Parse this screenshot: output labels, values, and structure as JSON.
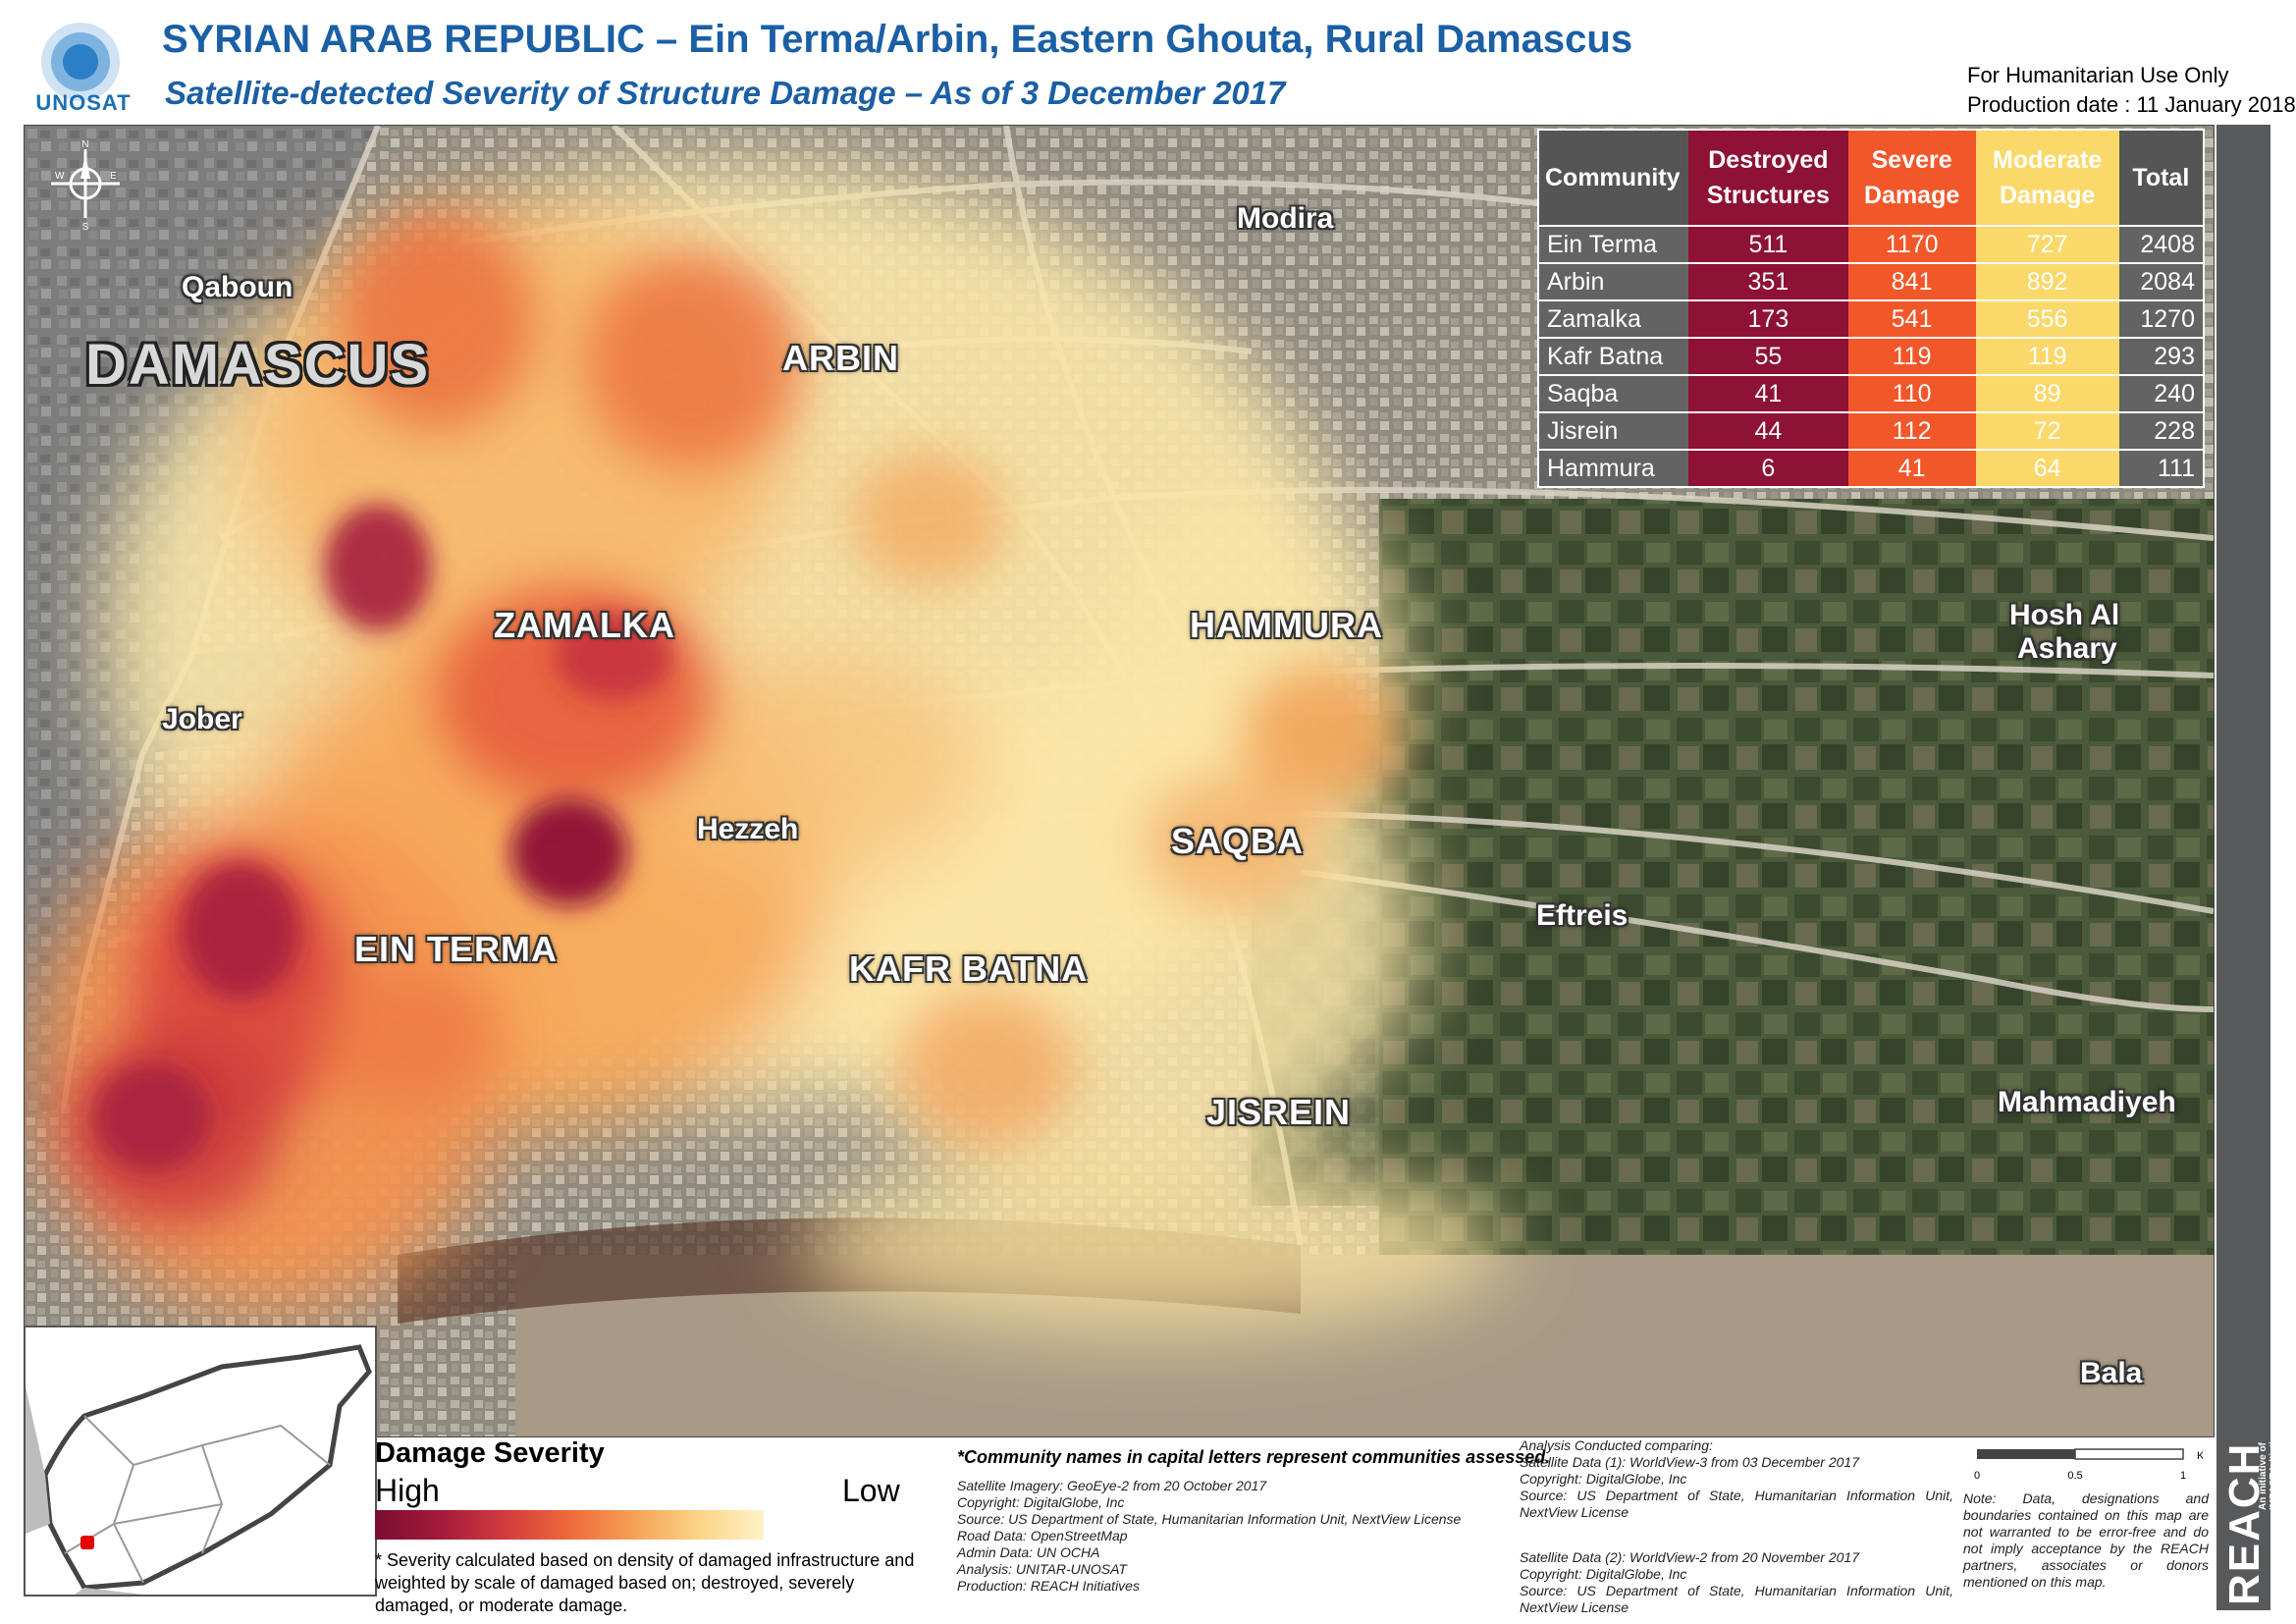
{
  "header": {
    "org_logo_text": "UNOSAT",
    "title": "SYRIAN ARAB REPUBLIC – Ein Terma/Arbin, Eastern Ghouta, Rural Damascus",
    "subtitle": "Satellite-detected Severity of Structure Damage – As of 3 December 2017",
    "humanitarian_use": "For Humanitarian Use Only",
    "production_date": "Production date : 11 January 2018"
  },
  "compass": {
    "n": "N",
    "s": "S",
    "e": "E",
    "w": "W"
  },
  "map_labels": {
    "qaboun": "Qaboun",
    "damascus": "DAMASCUS",
    "jober": "Jober",
    "modira": "Modira",
    "arbin": "ARBIN",
    "zamalka": "ZAMALKA",
    "hammura": "HAMMURA",
    "hosh_al_ashary_1": "Hosh Al",
    "hosh_al_ashary_2": "Ashary",
    "hezzeh": "Hezzeh",
    "saqba": "SAQBA",
    "ein_terma": "EIN TERMA",
    "kafr_batna": "KAFR BATNA",
    "eftreis": "Eftreis",
    "jisrein": "JISREIN",
    "mahmadiyeh": "Mahmadiyeh",
    "bala": "Bala"
  },
  "damage_table": {
    "headers": {
      "community": "Community",
      "destroyed_1": "Destroyed",
      "destroyed_2": "Structures",
      "severe_1": "Severe",
      "severe_2": "Damage",
      "moderate_1": "Moderate",
      "moderate_2": "Damage",
      "total": "Total"
    },
    "rows": [
      {
        "community": "Ein Terma",
        "destroyed": "511",
        "severe": "1170",
        "moderate": "727",
        "total": "2408"
      },
      {
        "community": "Arbin",
        "destroyed": "351",
        "severe": "841",
        "moderate": "892",
        "total": "2084"
      },
      {
        "community": "Zamalka",
        "destroyed": "173",
        "severe": "541",
        "moderate": "556",
        "total": "1270"
      },
      {
        "community": "Kafr Batna",
        "destroyed": "55",
        "severe": "119",
        "moderate": "119",
        "total": "293"
      },
      {
        "community": "Saqba",
        "destroyed": "41",
        "severe": "110",
        "moderate": "89",
        "total": "240"
      },
      {
        "community": "Jisrein",
        "destroyed": "44",
        "severe": "112",
        "moderate": "72",
        "total": "228"
      },
      {
        "community": "Hammura",
        "destroyed": "6",
        "severe": "41",
        "moderate": "64",
        "total": "111"
      }
    ],
    "colors": {
      "destroyed": "#8e1136",
      "severe": "#f2572a",
      "moderate": "#fad86a",
      "neutral": "#555555"
    }
  },
  "legend": {
    "title": "Damage Severity",
    "high": "High",
    "low": "Low",
    "note": "* Severity calculated based on density of damaged infrastructure and weighted by scale of damaged based on; destroyed, severely damaged, or moderate damage."
  },
  "credits": {
    "capital_note": "*Community names in capital letters represent communities assessed.",
    "imagery": "Satellite Imagery: GeoEye-2 from 20 October 2017",
    "copyright": "Copyright: DigitalGlobe, Inc",
    "source": "Source: US Department of State, Humanitarian Information Unit, NextView License",
    "road": "Road Data: OpenStreetMap",
    "admin": "Admin Data: UN OCHA",
    "analysis": "Analysis: UNITAR-UNOSAT",
    "production": "Production: REACH Initiatives",
    "analysis_comp": "Analysis Conducted comparing:",
    "sat1": "Satellite Data (1): WorldView-3 from 03 December 2017",
    "sat1_copy": "Copyright: DigitalGlobe, Inc",
    "sat1_source": "Source: US Department of State, Humanitarian Information Unit, NextView License",
    "sat2": "Satellite Data (2): WorldView-2 from 20 November 2017",
    "sat2_copy": "Copyright: DigitalGlobe, Inc",
    "sat2_source": "Source: US Department of State, Humanitarian Information Unit, NextView License"
  },
  "scale": {
    "unit": "Km",
    "t0": "0",
    "t1": "0.5",
    "t2": "1"
  },
  "disclaimer": "Note: Data, designations and boundaries contained on this map are not warranted to be error-free and do not imply acceptance by the REACH partners, associates or donors mentioned on this map.",
  "reach": {
    "name": "REACH",
    "tagline_1": "An initiative of",
    "tagline_2": "IMPACT Initiatives",
    "tagline_3": "ACTED and UNOSAT"
  }
}
